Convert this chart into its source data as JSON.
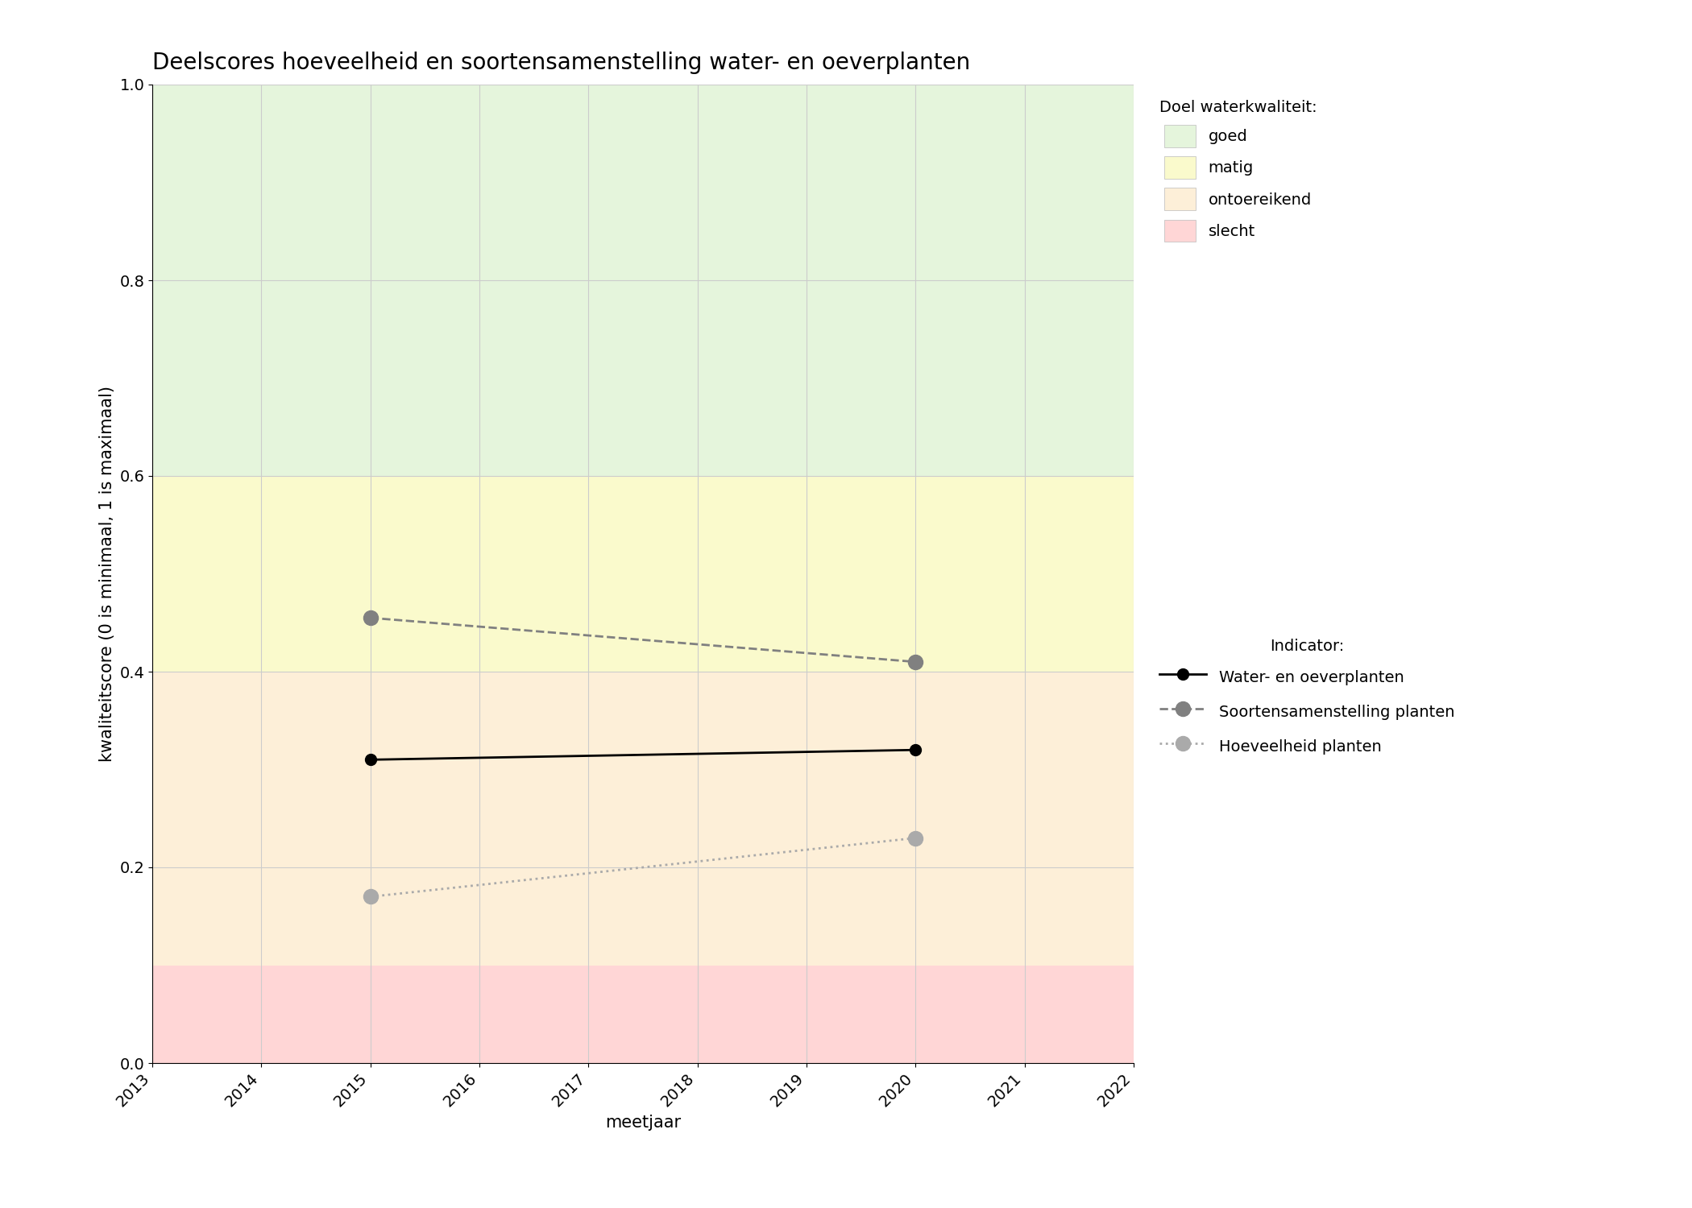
{
  "title": "Deelscores hoeveelheid en soortensamenstelling water- en oeverplanten",
  "xlabel": "meetjaar",
  "ylabel": "kwaliteitscore (0 is minimaal, 1 is maximaal)",
  "xlim": [
    2013,
    2022
  ],
  "ylim": [
    0.0,
    1.0
  ],
  "xticks": [
    2013,
    2014,
    2015,
    2016,
    2017,
    2018,
    2019,
    2020,
    2021,
    2022
  ],
  "yticks": [
    0.0,
    0.2,
    0.4,
    0.6,
    0.8,
    1.0
  ],
  "bg_bands": [
    {
      "ymin": 0.0,
      "ymax": 0.1,
      "color": "#ffd6d6",
      "label": "slecht"
    },
    {
      "ymin": 0.1,
      "ymax": 0.4,
      "color": "#fdefd8",
      "label": "ontoereikend"
    },
    {
      "ymin": 0.4,
      "ymax": 0.6,
      "color": "#fafacc",
      "label": "matig"
    },
    {
      "ymin": 0.6,
      "ymax": 1.0,
      "color": "#e5f5dc",
      "label": "goed"
    }
  ],
  "series": [
    {
      "name": "Water- en oeverplanten",
      "x": [
        2015,
        2020
      ],
      "y": [
        0.31,
        0.32
      ],
      "color": "#000000",
      "linestyle": "solid",
      "linewidth": 2.0,
      "marker": "o",
      "markersize": 10,
      "zorder": 5
    },
    {
      "name": "Soortensamenstelling planten",
      "x": [
        2015,
        2020
      ],
      "y": [
        0.455,
        0.41
      ],
      "color": "#808080",
      "linestyle": "dashed",
      "linewidth": 2.0,
      "marker": "o",
      "markersize": 13,
      "zorder": 4
    },
    {
      "name": "Hoeveelheid planten",
      "x": [
        2015,
        2020
      ],
      "y": [
        0.17,
        0.23
      ],
      "color": "#aaaaaa",
      "linestyle": "dotted",
      "linewidth": 2.0,
      "marker": "o",
      "markersize": 13,
      "zorder": 3
    }
  ],
  "legend_quality_title": "Doel waterkwaliteit:",
  "legend_indicator_title": "Indicator:",
  "background_color": "#ffffff",
  "grid_color": "#cccccc",
  "title_fontsize": 20,
  "axis_label_fontsize": 15,
  "tick_fontsize": 14,
  "legend_fontsize": 14
}
